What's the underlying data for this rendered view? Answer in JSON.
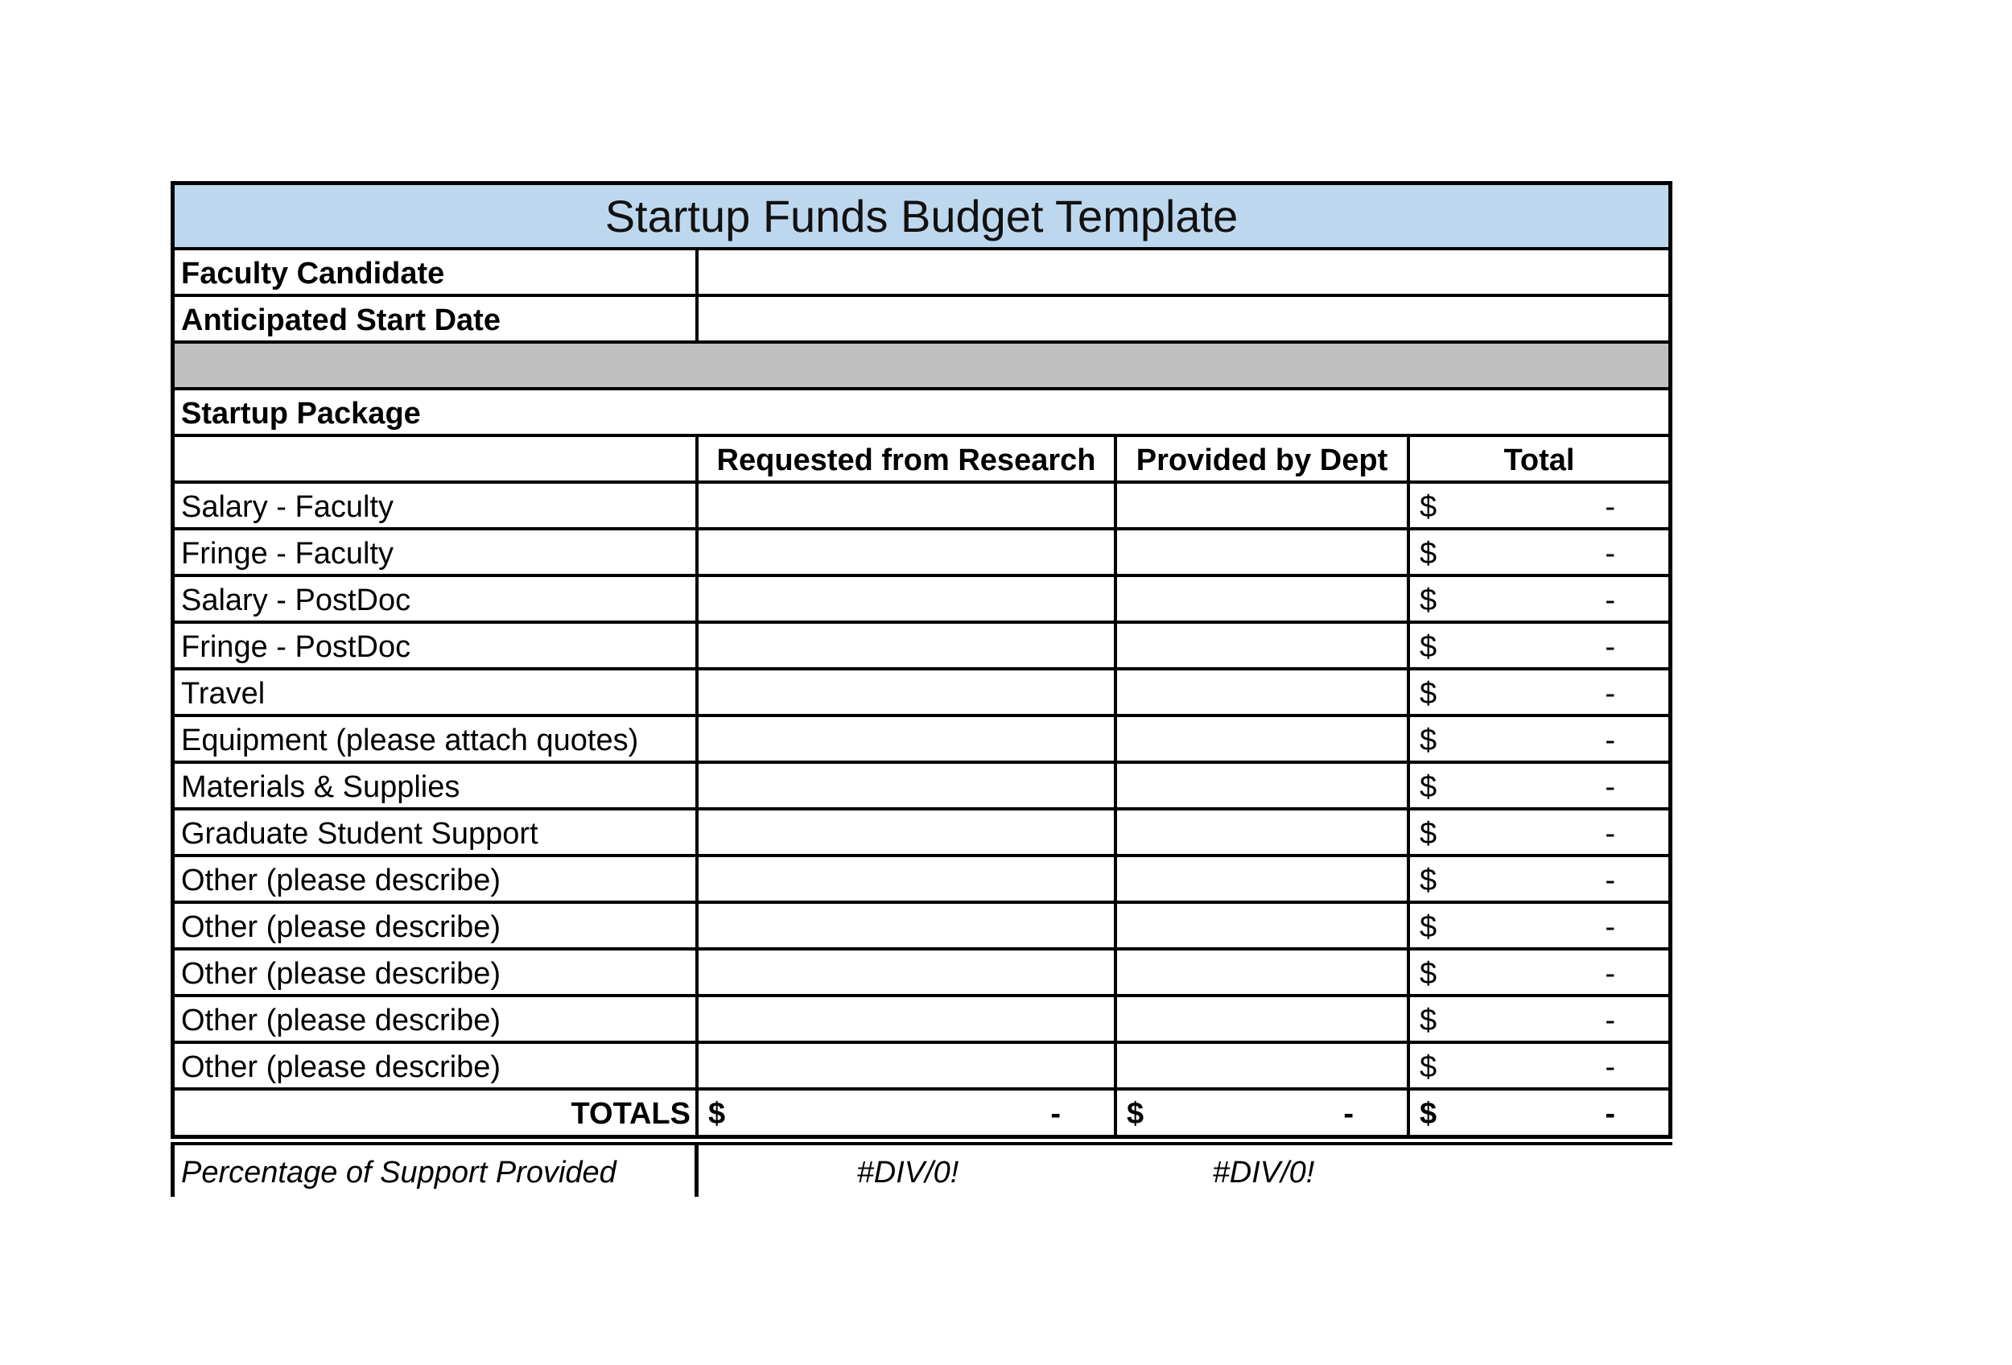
{
  "title": "Startup Funds Budget Template",
  "info_rows": [
    {
      "label": "Faculty Candidate",
      "value": ""
    },
    {
      "label": "Anticipated Start Date",
      "value": ""
    }
  ],
  "section_header": "Startup Package",
  "columns": {
    "requested": "Requested from Research",
    "provided": "Provided by Dept",
    "total": "Total"
  },
  "money": {
    "symbol": "$",
    "empty": "-"
  },
  "items": [
    {
      "label": "Salary - Faculty"
    },
    {
      "label": "Fringe - Faculty"
    },
    {
      "label": "Salary - PostDoc"
    },
    {
      "label": "Fringe - PostDoc"
    },
    {
      "label": "Travel"
    },
    {
      "label": "Equipment (please attach quotes)"
    },
    {
      "label": "Materials & Supplies"
    },
    {
      "label": "Graduate Student Support"
    },
    {
      "label": "Other (please describe)"
    },
    {
      "label": "Other (please describe)"
    },
    {
      "label": "Other (please describe)"
    },
    {
      "label": "Other (please describe)"
    },
    {
      "label": "Other (please describe)"
    }
  ],
  "totals_row": {
    "label": "TOTALS",
    "requested_symbol": "$",
    "requested_amount": "-",
    "provided_symbol": "$",
    "provided_amount": "-",
    "total_symbol": "$",
    "total_amount": "-"
  },
  "percentage_row": {
    "label": "Percentage of Support Provided",
    "requested_value": "#DIV/0!",
    "provided_value": "#DIV/0!"
  },
  "colors": {
    "title_background": "#BDD7EE",
    "separator_background": "#BFBFBF",
    "border": "#000000",
    "text": "#000000"
  }
}
